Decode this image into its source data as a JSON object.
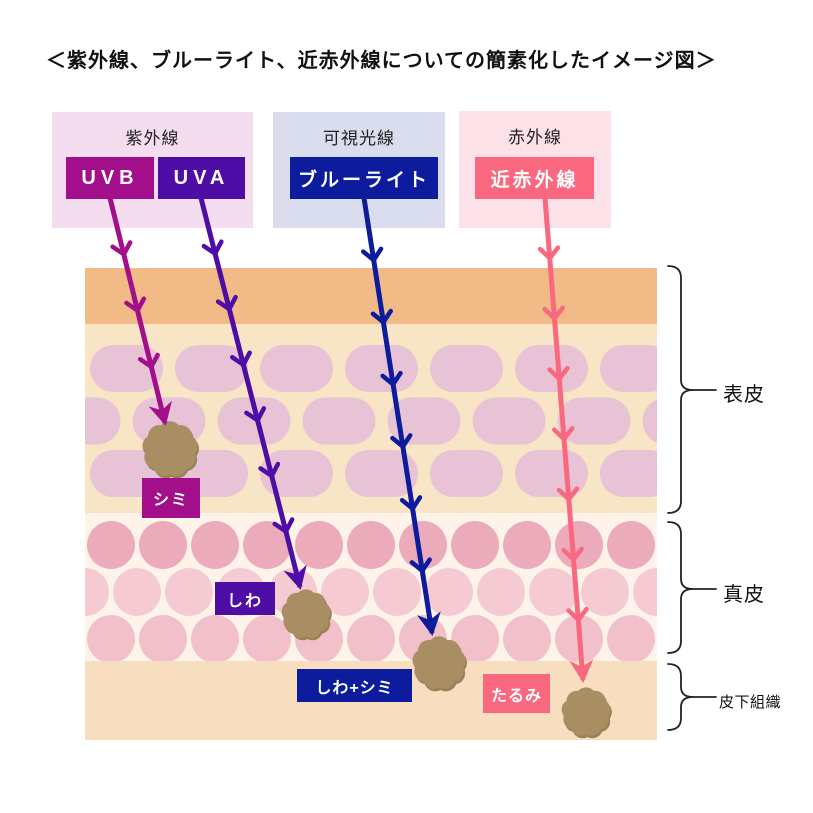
{
  "title": "＜紫外線、ブルーライト、近赤外線についての簡素化したイメージ図＞",
  "groups": {
    "uv": {
      "label": "紫外線",
      "uvb": "UVB",
      "uva": "UVA"
    },
    "visible": {
      "label": "可視光線",
      "blue": "ブルーライト"
    },
    "infrared": {
      "label": "赤外線",
      "nir": "近赤外線"
    }
  },
  "damage": {
    "shimi": "シミ",
    "shiwa": "しわ",
    "shiwa_shimi": "しわ+シミ",
    "tarumi": "たるみ"
  },
  "layers": {
    "epidermis": "表皮",
    "dermis": "真皮",
    "subcutaneous": "皮下組織"
  },
  "colors": {
    "uvb": "#a30f8b",
    "uva": "#4e0da5",
    "blue_light": "#0c1c9c",
    "near_infrared": "#f9687f"
  }
}
